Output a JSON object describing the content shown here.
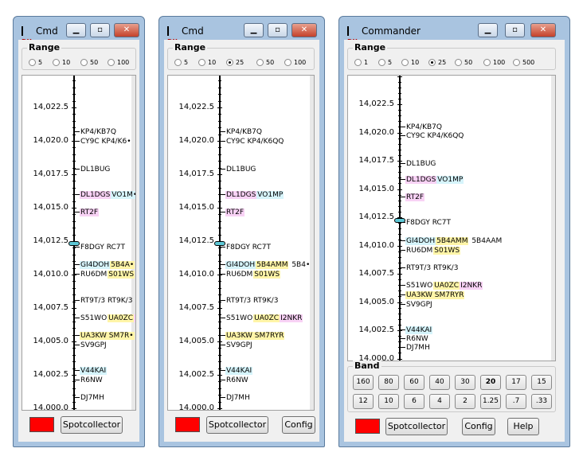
{
  "windows": [
    {
      "title": "Cmd",
      "range_label": "Range",
      "range_options": [
        "5",
        "10",
        "50",
        "100"
      ],
      "range_selected": null,
      "freq_labels": [
        "14,022.5",
        "14,020.0",
        "14,017.5",
        "14,015.0",
        "14,012.5",
        "14,010.0",
        "14,007.5",
        "14,005.0",
        "14,002.5",
        "14,000.0"
      ],
      "spots": [
        {
          "parts": [
            {
              "t": "KP4/KB7Q",
              "c": ""
            }
          ]
        },
        {
          "parts": [
            {
              "t": "CY9C KP4/K6•",
              "c": ""
            }
          ]
        },
        {
          "parts": [
            {
              "t": "DL1BUG",
              "c": ""
            }
          ]
        },
        {
          "parts": [
            {
              "t": "DL1DGS",
              "c": "pink"
            },
            {
              "t": "VO1M•",
              "c": "cyan"
            }
          ]
        },
        {
          "parts": [
            {
              "t": "RT2F",
              "c": "pink"
            }
          ]
        },
        {
          "parts": [
            {
              "t": "F8DGY RC7T",
              "c": ""
            }
          ]
        },
        {
          "parts": [
            {
              "t": "GI4DOH",
              "c": "cyan"
            },
            {
              "t": "5B4A•",
              "c": "yellow"
            }
          ]
        },
        {
          "parts": [
            {
              "t": "RU6DM",
              "c": ""
            },
            {
              "t": "S01WS",
              "c": "yellow"
            }
          ]
        },
        {
          "parts": [
            {
              "t": "RT9T/3 RT9K/3",
              "c": ""
            }
          ]
        },
        {
          "parts": [
            {
              "t": "S51WO",
              "c": ""
            },
            {
              "t": "UA0ZC",
              "c": "yellow"
            },
            {
              "t": "•",
              "c": "pink"
            }
          ]
        },
        {
          "parts": [
            {
              "t": "UA3KW SM7R•",
              "c": "yellow"
            }
          ]
        },
        {
          "parts": [
            {
              "t": "SV9GPJ",
              "c": ""
            }
          ]
        },
        {
          "parts": [
            {
              "t": "V44KAI",
              "c": "cyan"
            }
          ]
        },
        {
          "parts": [
            {
              "t": "R6NW",
              "c": ""
            }
          ]
        },
        {
          "parts": [
            {
              "t": "DJ7MH",
              "c": ""
            }
          ]
        }
      ],
      "buttons": [
        "Spotcollector"
      ]
    },
    {
      "title": "Cmd",
      "range_label": "Range",
      "range_options": [
        "5",
        "10",
        "25",
        "50",
        "100"
      ],
      "range_selected": "25",
      "freq_labels": [
        "14,022.5",
        "14,020.0",
        "14,017.5",
        "14,015.0",
        "14,012.5",
        "14,010.0",
        "14,007.5",
        "14,005.0",
        "14,002.5",
        "14,000.0"
      ],
      "spots": [
        {
          "parts": [
            {
              "t": "KP4/KB7Q",
              "c": ""
            }
          ]
        },
        {
          "parts": [
            {
              "t": "CY9C KP4/K6QQ",
              "c": ""
            }
          ]
        },
        {
          "parts": [
            {
              "t": "DL1BUG",
              "c": ""
            }
          ]
        },
        {
          "parts": [
            {
              "t": "DL1DGS",
              "c": "pink"
            },
            {
              "t": "VO1MP",
              "c": "cyan"
            }
          ]
        },
        {
          "parts": [
            {
              "t": "RT2F",
              "c": "pink"
            }
          ]
        },
        {
          "parts": [
            {
              "t": "F8DGY RC7T",
              "c": ""
            }
          ]
        },
        {
          "parts": [
            {
              "t": "GI4DOH",
              "c": "cyan"
            },
            {
              "t": "5B4AMM",
              "c": "yellow"
            },
            {
              "t": "5B4•",
              "c": ""
            }
          ]
        },
        {
          "parts": [
            {
              "t": "RU6DM",
              "c": ""
            },
            {
              "t": "S01WS",
              "c": "yellow"
            }
          ]
        },
        {
          "parts": [
            {
              "t": "RT9T/3 RT9K/3",
              "c": ""
            }
          ]
        },
        {
          "parts": [
            {
              "t": "S51WO",
              "c": ""
            },
            {
              "t": "UA0ZC",
              "c": "yellow"
            },
            {
              "t": "I2NKR",
              "c": "pink"
            }
          ]
        },
        {
          "parts": [
            {
              "t": "UA3KW SM7RYR",
              "c": "yellow"
            }
          ]
        },
        {
          "parts": [
            {
              "t": "SV9GPJ",
              "c": ""
            }
          ]
        },
        {
          "parts": [
            {
              "t": "V44KAI",
              "c": "cyan"
            }
          ]
        },
        {
          "parts": [
            {
              "t": "R6NW",
              "c": ""
            }
          ]
        },
        {
          "parts": [
            {
              "t": "DJ7MH",
              "c": ""
            }
          ]
        }
      ],
      "buttons": [
        "Spotcollector",
        "Config"
      ]
    },
    {
      "title": "Commander",
      "range_label": "Range",
      "range_options": [
        "1",
        "5",
        "10",
        "25",
        "50",
        "100",
        "500"
      ],
      "range_selected": "25",
      "freq_labels": [
        "14,022.5",
        "14,020.0",
        "14,017.5",
        "14,015.0",
        "14,012.5",
        "14,010.0",
        "14,007.5",
        "14,005.0",
        "14,002.5",
        "14,000.0"
      ],
      "spots": [
        {
          "parts": [
            {
              "t": "KP4/KB7Q",
              "c": ""
            }
          ]
        },
        {
          "parts": [
            {
              "t": "CY9C KP4/K6QQ",
              "c": ""
            }
          ]
        },
        {
          "parts": [
            {
              "t": "DL1BUG",
              "c": ""
            }
          ]
        },
        {
          "parts": [
            {
              "t": "DL1DGS",
              "c": "pink"
            },
            {
              "t": "VO1MP",
              "c": "cyan"
            }
          ]
        },
        {
          "parts": [
            {
              "t": "RT2F",
              "c": "pink"
            }
          ]
        },
        {
          "parts": [
            {
              "t": "F8DGY RC7T",
              "c": ""
            }
          ]
        },
        {
          "parts": [
            {
              "t": "GI4DOH",
              "c": "cyan"
            },
            {
              "t": "5B4AMM",
              "c": "yellow"
            },
            {
              "t": "5B4AAM",
              "c": ""
            }
          ]
        },
        {
          "parts": [
            {
              "t": "RU6DM",
              "c": ""
            },
            {
              "t": "S01WS",
              "c": "yellow"
            }
          ]
        },
        {
          "parts": [
            {
              "t": "RT9T/3 RT9K/3",
              "c": ""
            }
          ]
        },
        {
          "parts": [
            {
              "t": "S51WO",
              "c": ""
            },
            {
              "t": "UA0ZC",
              "c": "yellow"
            },
            {
              "t": "I2NKR",
              "c": "pink"
            }
          ]
        },
        {
          "parts": [
            {
              "t": "UA3KW SM7RYR",
              "c": "yellow"
            }
          ]
        },
        {
          "parts": [
            {
              "t": "SV9GPJ",
              "c": ""
            }
          ]
        },
        {
          "parts": [
            {
              "t": "V44KAI",
              "c": "cyan"
            }
          ]
        },
        {
          "parts": [
            {
              "t": "R6NW",
              "c": ""
            }
          ]
        },
        {
          "parts": [
            {
              "t": "DJ7MH",
              "c": ""
            }
          ]
        }
      ],
      "band_label": "Band",
      "band_row1": [
        "160",
        "80",
        "60",
        "40",
        "30",
        "20",
        "17",
        "15"
      ],
      "band_row2": [
        "12",
        "10",
        "6",
        "4",
        "2",
        "1.25",
        ".7",
        ".33"
      ],
      "band_selected": "20",
      "buttons": [
        "Spotcollector",
        "Config",
        "Help"
      ]
    }
  ],
  "colors": {
    "pink": "#f8d2f5",
    "cyan": "#d6f4fb",
    "yellow": "#fff5a8",
    "indicator": "#ff0000",
    "marker": "#5ec8d6"
  },
  "icons": {
    "app": "dx-logo-icon",
    "minimize": "minimize-icon",
    "maximize": "maximize-icon",
    "close": "close-icon"
  }
}
